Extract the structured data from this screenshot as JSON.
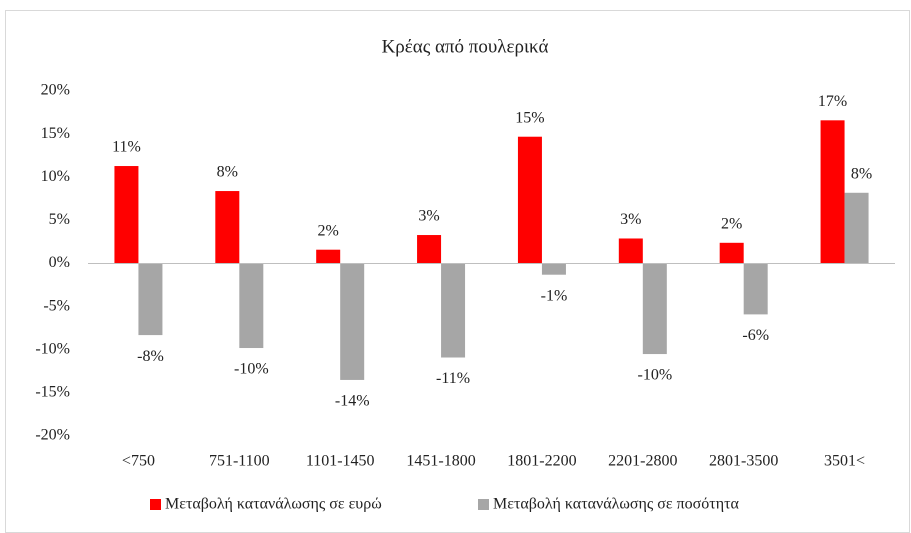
{
  "chart_data": {
    "type": "bar",
    "title": "Κρέας από πουλερικά",
    "categories": [
      "<750",
      "751-1100",
      "1101-1450",
      "1451-1800",
      "1801-2200",
      "2201-2800",
      "2801-3500",
      "3501<"
    ],
    "series": [
      {
        "name": "Μεταβολή κατανάλωσης σε ευρώ",
        "color": "#ff0000",
        "values": [
          11.3,
          8.4,
          1.6,
          3.3,
          14.7,
          2.9,
          2.4,
          16.6
        ],
        "value_labels": [
          "11%",
          "8%",
          "2%",
          "3%",
          "15%",
          "3%",
          "2%",
          "17%"
        ]
      },
      {
        "name": "Μεταβολή κατανάλωσης σε ποσότητα",
        "color": "#a6a6a6",
        "values": [
          -8.3,
          -9.8,
          -13.5,
          -10.9,
          -1.3,
          -10.5,
          -5.9,
          8.2
        ],
        "value_labels": [
          "-8%",
          "-10%",
          "-14%",
          "-11%",
          "-1%",
          "-10%",
          "-6%",
          "8%"
        ]
      }
    ],
    "ylim": [
      -20,
      20
    ],
    "yticks": [
      {
        "value": -20,
        "label": "-20%"
      },
      {
        "value": -15,
        "label": "-15%"
      },
      {
        "value": -10,
        "label": "-10%"
      },
      {
        "value": -5,
        "label": "-5%"
      },
      {
        "value": 0,
        "label": "0%"
      },
      {
        "value": 5,
        "label": "5%"
      },
      {
        "value": 10,
        "label": "10%"
      },
      {
        "value": 15,
        "label": "15%"
      },
      {
        "value": 20,
        "label": "20%"
      }
    ],
    "grid": false,
    "legend": "bottom"
  }
}
